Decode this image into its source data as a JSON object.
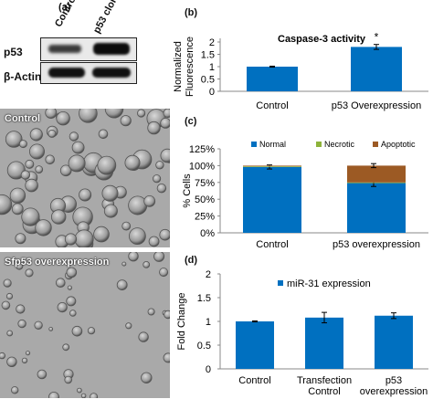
{
  "panel_a": {
    "letter": "(a)",
    "columns": [
      "Control",
      "p53 clone"
    ],
    "rows": [
      "p53",
      "β-Actin"
    ]
  },
  "micrographs": {
    "control_label": "Control",
    "overexpression_label": "Sfp53 overexpression"
  },
  "colors": {
    "blue": "#0070C0",
    "green": "#8DB33A",
    "brown": "#9C5A24"
  },
  "chart_data": [
    {
      "type": "bar",
      "letter": "(b)",
      "title": "Caspase-3 activity",
      "ylabel": "Normalized Fluorescence",
      "categories": [
        "Control",
        "p53 Overexpression"
      ],
      "values": [
        1.0,
        1.8
      ],
      "errors": [
        0.02,
        0.1
      ],
      "annotations": [
        "",
        "*"
      ],
      "ylim": [
        0,
        2
      ],
      "yticks": [
        "0",
        "0.5",
        "1",
        "1.5",
        "2"
      ]
    },
    {
      "type": "bar",
      "stacked": true,
      "letter": "(c)",
      "ylabel": "% Cells",
      "categories": [
        "Control",
        "p53 overexpression"
      ],
      "series": [
        {
          "name": "Normal",
          "values": [
            98,
            74
          ],
          "errors": [
            3,
            5
          ]
        },
        {
          "name": "Necrotic",
          "values": [
            1,
            1
          ],
          "errors": [
            0,
            0
          ]
        },
        {
          "name": "Apoptotic",
          "values": [
            1,
            25
          ],
          "errors": [
            0,
            3
          ]
        }
      ],
      "ylim": [
        0,
        125
      ],
      "yticks": [
        "0%",
        "25%",
        "50%",
        "75%",
        "100%",
        "125%"
      ],
      "legend": "top"
    },
    {
      "type": "bar",
      "letter": "(d)",
      "ylabel": "Fold Change",
      "categories": [
        [
          "Control"
        ],
        [
          "Transfection",
          "Control"
        ],
        [
          "p53",
          "overexpression"
        ]
      ],
      "series": [
        {
          "name": "miR-31 expression",
          "values": [
            1.0,
            1.08,
            1.12
          ],
          "errors": [
            0.01,
            0.11,
            0.06
          ]
        }
      ],
      "ylim": [
        0,
        2
      ],
      "yticks": [
        "0",
        "0.5",
        "1",
        "1.5",
        "2"
      ],
      "legend": "top"
    }
  ]
}
